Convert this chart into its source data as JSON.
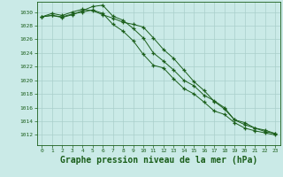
{
  "background_color": "#caeae7",
  "grid_color": "#aacfcb",
  "line_color": "#1a5e1a",
  "marker_color": "#1a5e1a",
  "xlabel": "Graphe pression niveau de la mer (hPa)",
  "xlabel_fontsize": 7,
  "ylabel_ticks": [
    1012,
    1014,
    1016,
    1018,
    1020,
    1022,
    1024,
    1026,
    1028,
    1030
  ],
  "ylim": [
    1010.5,
    1031.5
  ],
  "xlim": [
    -0.5,
    23.5
  ],
  "xticks": [
    0,
    1,
    2,
    3,
    4,
    5,
    6,
    7,
    8,
    9,
    10,
    11,
    12,
    13,
    14,
    15,
    16,
    17,
    18,
    19,
    20,
    21,
    22,
    23
  ],
  "series1": [
    1029.3,
    1029.5,
    1029.2,
    1029.6,
    1030.2,
    1030.8,
    1031.0,
    1029.4,
    1028.8,
    1027.6,
    1026.2,
    1024.0,
    1022.8,
    1021.5,
    1020.0,
    1019.2,
    1017.8,
    1017.0,
    1016.0,
    1014.2,
    1013.8,
    1013.0,
    1012.7,
    1012.2
  ],
  "series2": [
    1029.3,
    1029.8,
    1029.5,
    1030.0,
    1030.4,
    1030.2,
    1029.6,
    1029.1,
    1028.5,
    1028.2,
    1027.8,
    1026.2,
    1024.5,
    1023.2,
    1021.5,
    1019.8,
    1018.5,
    1016.9,
    1015.8,
    1014.2,
    1013.5,
    1013.0,
    1012.5,
    1012.2
  ],
  "series3": [
    1029.3,
    1029.5,
    1029.3,
    1029.7,
    1030.0,
    1030.3,
    1029.8,
    1028.2,
    1027.2,
    1025.8,
    1023.8,
    1022.2,
    1021.8,
    1020.2,
    1018.8,
    1018.0,
    1016.8,
    1015.5,
    1015.0,
    1013.8,
    1013.0,
    1012.6,
    1012.3,
    1012.0
  ]
}
